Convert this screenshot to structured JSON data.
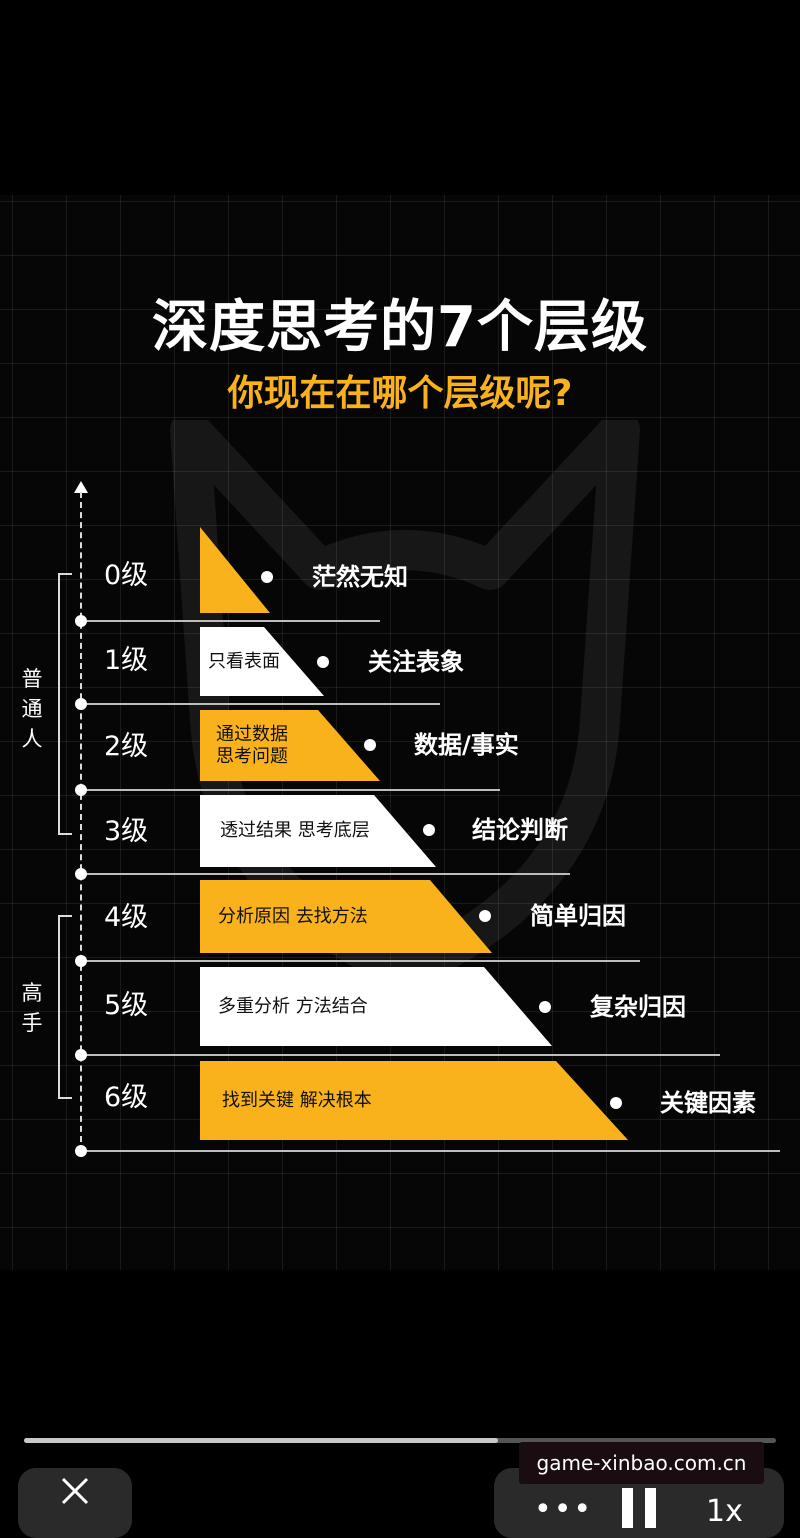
{
  "infographic": {
    "title": "深度思考的7个层级",
    "subtitle": "你现在在哪个层级呢?",
    "accent_color": "#F9B21B",
    "groups": [
      {
        "label": "普\n通\n人"
      },
      {
        "label": "高\n手"
      }
    ],
    "levels": [
      {
        "level": "0级",
        "inner_text": "",
        "result": "茫然无知",
        "fill": "yellow"
      },
      {
        "level": "1级",
        "inner_text": "只看表面",
        "result": "关注表象",
        "fill": "white"
      },
      {
        "level": "2级",
        "inner_text": "通过数据\n思考问题",
        "result": "数据/事实",
        "fill": "yellow"
      },
      {
        "level": "3级",
        "inner_text": "透过结果 思考底层",
        "result": "结论判断",
        "fill": "white"
      },
      {
        "level": "4级",
        "inner_text": "分析原因 去找方法",
        "result": "简单归因",
        "fill": "yellow"
      },
      {
        "level": "5级",
        "inner_text": "多重分析 方法结合",
        "result": "复杂归因",
        "fill": "white"
      },
      {
        "level": "6级",
        "inner_text": "找到关键 解决根本",
        "result": "关键因素",
        "fill": "yellow"
      }
    ]
  },
  "player": {
    "progress_fraction": 0.63,
    "close_icon": "close-icon",
    "more_icon": "more-icon",
    "pause_icon": "pause-icon",
    "speed_label": "1x"
  },
  "site_badge": "game-xinbao.com.cn"
}
